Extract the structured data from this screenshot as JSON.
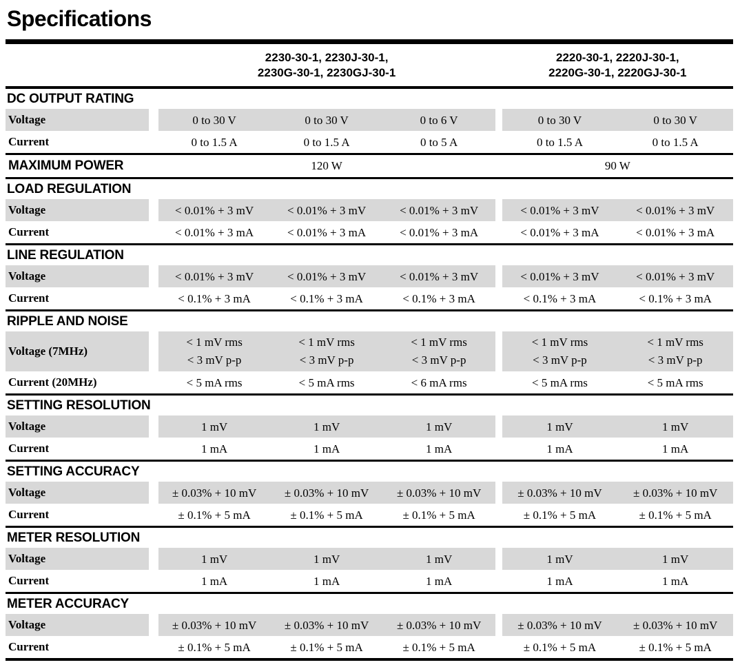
{
  "page_title": "Specifications",
  "colors": {
    "shade": "#d8d8d8",
    "rule": "#000000",
    "text": "#000000"
  },
  "table": {
    "column_groups": [
      {
        "line1": "2230-30-1, 2230J-30-1,",
        "line2": "2230G-30-1, 2230GJ-30-1",
        "columns": 3
      },
      {
        "line1": "2220-30-1, 2220J-30-1,",
        "line2": "2220G-30-1, 2220GJ-30-1",
        "columns": 2
      }
    ],
    "sections": [
      {
        "title": "DC OUTPUT RATING",
        "type": "rows",
        "rows": [
          {
            "label": "Voltage",
            "shaded": true,
            "values": [
              "0 to 30 V",
              "0 to 30 V",
              "0 to 6 V",
              "0 to 30 V",
              "0 to 30 V"
            ]
          },
          {
            "label": "Current",
            "shaded": false,
            "values": [
              "0 to 1.5 A",
              "0 to 1.5 A",
              "0 to 5 A",
              "0 to 1.5 A",
              "0 to 1.5 A"
            ]
          }
        ]
      },
      {
        "title": "MAXIMUM POWER",
        "type": "inline",
        "values": [
          "120 W",
          "90 W"
        ]
      },
      {
        "title": "LOAD REGULATION",
        "type": "rows",
        "rows": [
          {
            "label": "Voltage",
            "shaded": true,
            "values": [
              "< 0.01% + 3 mV",
              "< 0.01% + 3 mV",
              "< 0.01% + 3 mV",
              "< 0.01% + 3 mV",
              "< 0.01% + 3 mV"
            ]
          },
          {
            "label": "Current",
            "shaded": false,
            "values": [
              "< 0.01% + 3 mA",
              "< 0.01% + 3 mA",
              "< 0.01% + 3 mA",
              "< 0.01% + 3 mA",
              "< 0.01% + 3 mA"
            ]
          }
        ]
      },
      {
        "title": "LINE REGULATION",
        "type": "rows",
        "rows": [
          {
            "label": "Voltage",
            "shaded": true,
            "values": [
              "< 0.01% + 3 mV",
              "< 0.01% + 3 mV",
              "< 0.01% + 3 mV",
              "< 0.01% + 3 mV",
              "< 0.01% + 3 mV"
            ]
          },
          {
            "label": "Current",
            "shaded": false,
            "values": [
              "< 0.1% + 3 mA",
              "< 0.1% + 3 mA",
              "< 0.1% + 3 mA",
              "< 0.1% + 3 mA",
              "< 0.1% + 3 mA"
            ]
          }
        ]
      },
      {
        "title": "RIPPLE AND NOISE",
        "type": "rows",
        "rows": [
          {
            "label": "Voltage (7MHz)",
            "shaded": true,
            "tall": true,
            "values": [
              [
                "< 1 mV rms",
                "< 3 mV p-p"
              ],
              [
                "< 1 mV rms",
                "< 3 mV p-p"
              ],
              [
                "< 1 mV rms",
                "< 3 mV p-p"
              ],
              [
                "< 1 mV rms",
                "< 3 mV p-p"
              ],
              [
                "< 1 mV rms",
                "< 3 mV p-p"
              ]
            ]
          },
          {
            "label": "Current (20MHz)",
            "shaded": false,
            "values": [
              "< 5 mA rms",
              "< 5 mA rms",
              "< 6 mA rms",
              "< 5 mA rms",
              "< 5 mA rms"
            ]
          }
        ]
      },
      {
        "title": "SETTING RESOLUTION",
        "type": "rows",
        "rows": [
          {
            "label": "Voltage",
            "shaded": true,
            "values": [
              "1 mV",
              "1 mV",
              "1 mV",
              "1 mV",
              "1 mV"
            ]
          },
          {
            "label": "Current",
            "shaded": false,
            "values": [
              "1 mA",
              "1 mA",
              "1 mA",
              "1 mA",
              "1 mA"
            ]
          }
        ]
      },
      {
        "title": "SETTING ACCURACY",
        "type": "rows",
        "rows": [
          {
            "label": "Voltage",
            "shaded": true,
            "values": [
              "± 0.03% + 10 mV",
              "± 0.03% + 10 mV",
              "± 0.03% + 10 mV",
              "± 0.03% + 10 mV",
              "± 0.03% + 10 mV"
            ]
          },
          {
            "label": "Current",
            "shaded": false,
            "values": [
              "± 0.1% + 5 mA",
              "± 0.1% + 5 mA",
              "± 0.1% + 5 mA",
              "± 0.1% + 5 mA",
              "± 0.1% + 5 mA"
            ]
          }
        ]
      },
      {
        "title": "METER RESOLUTION",
        "type": "rows",
        "rows": [
          {
            "label": "Voltage",
            "shaded": true,
            "values": [
              "1 mV",
              "1 mV",
              "1 mV",
              "1 mV",
              "1 mV"
            ]
          },
          {
            "label": "Current",
            "shaded": false,
            "values": [
              "1 mA",
              "1 mA",
              "1 mA",
              "1 mA",
              "1 mA"
            ]
          }
        ]
      },
      {
        "title": "METER ACCURACY",
        "type": "rows",
        "rows": [
          {
            "label": "Voltage",
            "shaded": true,
            "values": [
              "± 0.03% + 10 mV",
              "± 0.03% + 10 mV",
              "± 0.03% + 10 mV",
              "± 0.03% + 10 mV",
              "± 0.03% + 10 mV"
            ]
          },
          {
            "label": "Current",
            "shaded": false,
            "values": [
              "± 0.1% + 5 mA",
              "± 0.1% + 5 mA",
              "± 0.1% + 5 mA",
              "± 0.1% + 5 mA",
              "± 0.1% + 5 mA"
            ]
          }
        ]
      }
    ]
  }
}
